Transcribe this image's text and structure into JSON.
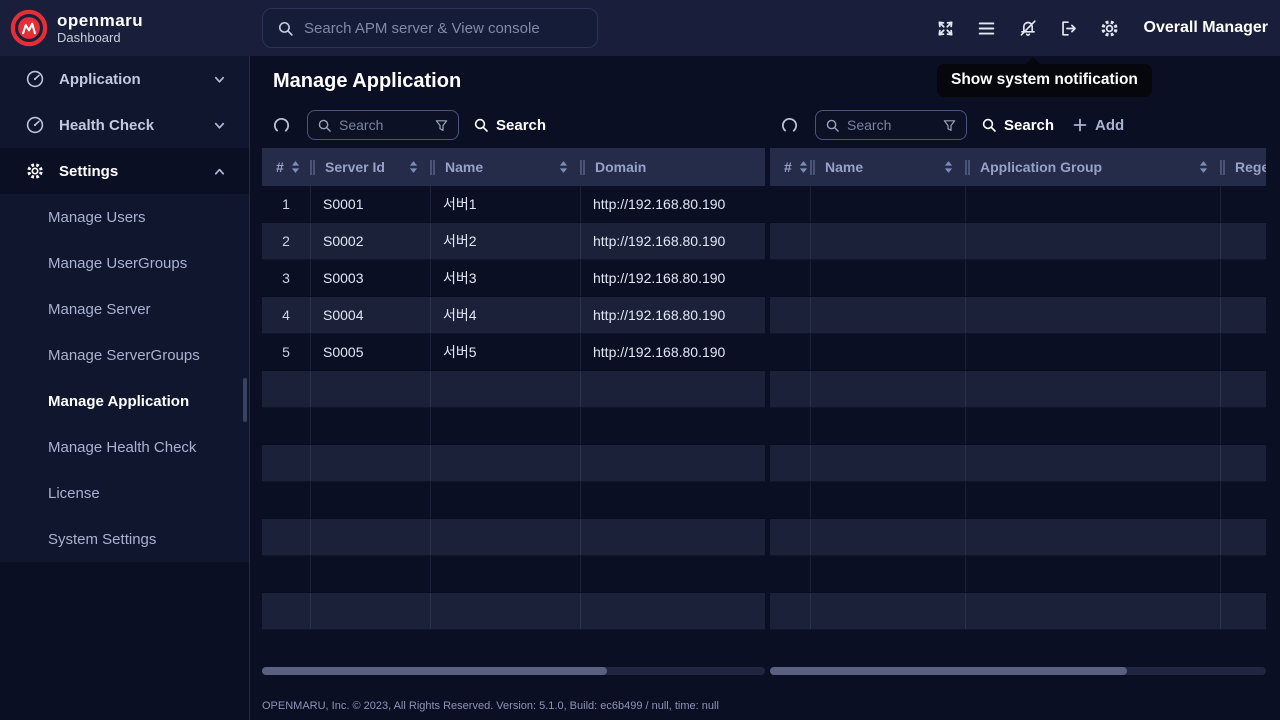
{
  "header": {
    "logo_title": "openmaru",
    "logo_subtitle": "Dashboard",
    "search_placeholder": "Search APM server & View console",
    "user_label": "Overall Manager"
  },
  "tooltip": {
    "text": "Show system notification"
  },
  "sidebar": {
    "items": [
      {
        "label": "Application"
      },
      {
        "label": "Health Check"
      },
      {
        "label": "Settings"
      }
    ],
    "submenu": [
      "Manage Users",
      "Manage UserGroups",
      "Manage Server",
      "Manage ServerGroups",
      "Manage Application",
      "Manage Health Check",
      "License",
      "System Settings"
    ],
    "active_item": "Manage Application"
  },
  "page": {
    "title": "Manage Application"
  },
  "left_panel": {
    "search_placeholder": "Search",
    "search_button": "Search",
    "columns": [
      "#",
      "Server Id",
      "Name",
      "Domain"
    ],
    "rows": [
      [
        "1",
        "S0001",
        "서버1",
        "http://192.168.80.190"
      ],
      [
        "2",
        "S0002",
        "서버2",
        "http://192.168.80.190"
      ],
      [
        "3",
        "S0003",
        "서버3",
        "http://192.168.80.190"
      ],
      [
        "4",
        "S0004",
        "서버4",
        "http://192.168.80.190"
      ],
      [
        "5",
        "S0005",
        "서버5",
        "http://192.168.80.190"
      ]
    ],
    "empty_rows": 7
  },
  "right_panel": {
    "search_placeholder": "Search",
    "search_button": "Search",
    "add_button": "Add",
    "columns": [
      "#",
      "Name",
      "Application Group",
      "Regex"
    ],
    "rows": [],
    "empty_rows": 12
  },
  "footer": {
    "text": "OPENMARU, Inc. © 2023, All Rights Reserved. Version: 5.1.0, Build: ec6b499 / null, time: null"
  },
  "colors": {
    "brand_red": "#e62e38",
    "background": "#0a0f23",
    "table_header_bg": "#242c49",
    "tooltip_bg": "#06070d"
  }
}
